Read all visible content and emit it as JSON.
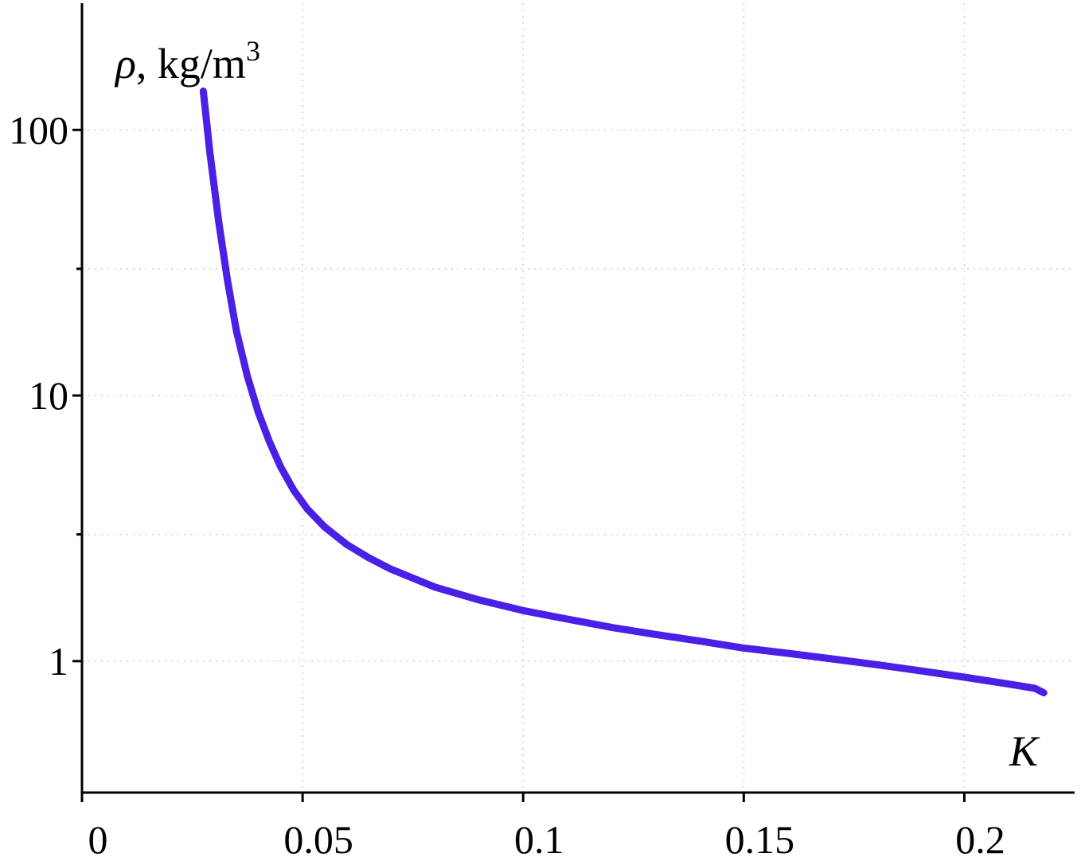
{
  "chart_data": {
    "type": "line",
    "title": "",
    "xlabel": "K",
    "ylabel_symbol": "ρ",
    "ylabel_unit": ", kg/m",
    "ylabel_exponent": "3",
    "y_scale": "log",
    "xlim": [
      0,
      0.225
    ],
    "ylim": [
      0.32,
      300
    ],
    "grid": true,
    "x_ticks": [
      {
        "value": 0,
        "label": "0"
      },
      {
        "value": 0.05,
        "label": "0.05"
      },
      {
        "value": 0.1,
        "label": "0.1"
      },
      {
        "value": 0.15,
        "label": "0.15"
      },
      {
        "value": 0.2,
        "label": "0.2"
      }
    ],
    "y_ticks": [
      {
        "value": 1,
        "label": "1"
      },
      {
        "value": 10,
        "label": "10"
      },
      {
        "value": 100,
        "label": "100"
      }
    ],
    "y_minor_grid": [
      3,
      30
    ],
    "series": [
      {
        "color": "#4a1fe6",
        "x": [
          0.0275,
          0.029,
          0.031,
          0.033,
          0.035,
          0.0375,
          0.04,
          0.0425,
          0.045,
          0.048,
          0.051,
          0.055,
          0.06,
          0.065,
          0.07,
          0.08,
          0.09,
          0.1,
          0.11,
          0.12,
          0.13,
          0.14,
          0.15,
          0.16,
          0.17,
          0.18,
          0.19,
          0.2,
          0.21,
          0.216,
          0.218
        ],
        "y": [
          140,
          82,
          45,
          27,
          17.5,
          11.8,
          8.6,
          6.7,
          5.4,
          4.4,
          3.75,
          3.2,
          2.75,
          2.45,
          2.22,
          1.9,
          1.7,
          1.55,
          1.44,
          1.34,
          1.26,
          1.19,
          1.12,
          1.07,
          1.02,
          0.97,
          0.92,
          0.87,
          0.82,
          0.79,
          0.76
        ]
      }
    ]
  }
}
